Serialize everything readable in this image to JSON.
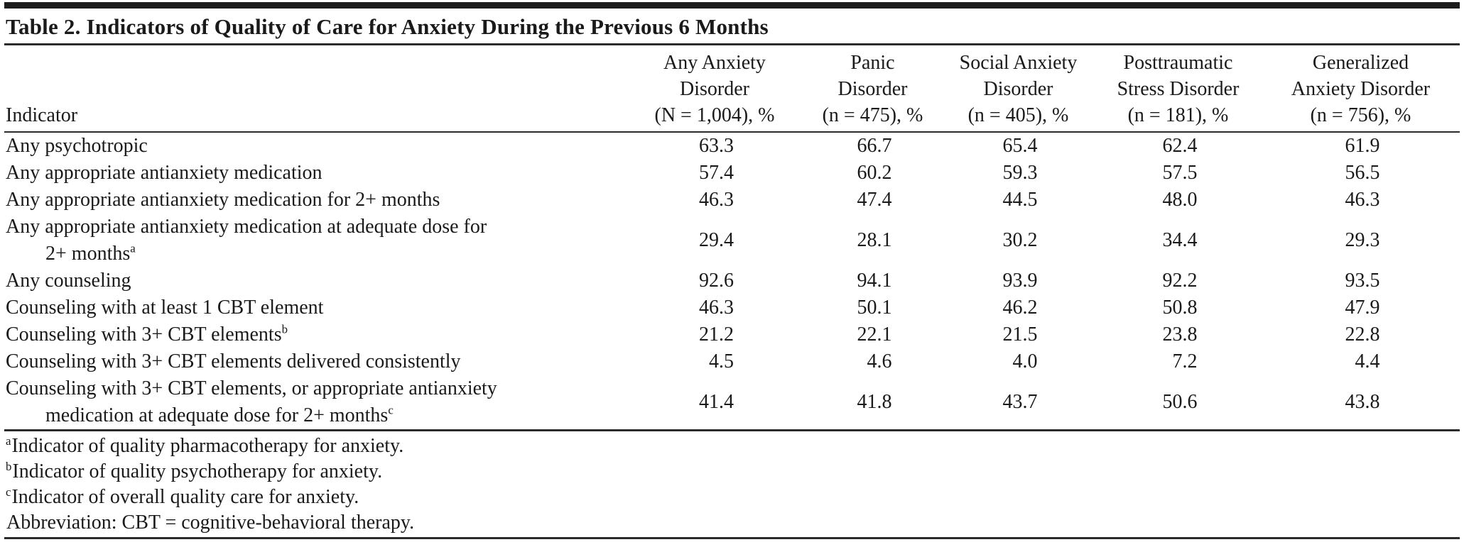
{
  "page": {
    "title": "Table 2. Indicators of Quality of Care for Anxiety During the Previous 6 Months"
  },
  "table": {
    "indicator_header": "Indicator",
    "columns": [
      {
        "line1": "Any Anxiety",
        "line2": "Disorder",
        "line3": "(N = 1,004), %"
      },
      {
        "line1": "Panic",
        "line2": "Disorder",
        "line3": "(n = 475), %"
      },
      {
        "line1": "Social Anxiety",
        "line2": "Disorder",
        "line3": "(n = 405), %"
      },
      {
        "line1": "Posttraumatic",
        "line2": "Stress Disorder",
        "line3": "(n = 181), %"
      },
      {
        "line1": "Generalized",
        "line2": "Anxiety Disorder",
        "line3": "(n = 756), %"
      }
    ],
    "rows": [
      {
        "text": "Any psychotropic",
        "values": [
          "63.3",
          "66.7",
          "65.4",
          "62.4",
          "61.9"
        ]
      },
      {
        "text": "Any appropriate antianxiety medication",
        "values": [
          "57.4",
          "60.2",
          "59.3",
          "57.5",
          "56.5"
        ]
      },
      {
        "text": "Any appropriate antianxiety medication for 2+ months",
        "values": [
          "46.3",
          "47.4",
          "44.5",
          "48.0",
          "46.3"
        ]
      },
      {
        "text": "Any appropriate antianxiety medication at adequate dose for",
        "text2": "2+ months",
        "sup": "a",
        "values": [
          "29.4",
          "28.1",
          "30.2",
          "34.4",
          "29.3"
        ]
      },
      {
        "text": "Any counseling",
        "values": [
          "92.6",
          "94.1",
          "93.9",
          "92.2",
          "93.5"
        ]
      },
      {
        "text": "Counseling with at least 1 CBT element",
        "values": [
          "46.3",
          "50.1",
          "46.2",
          "50.8",
          "47.9"
        ]
      },
      {
        "text": "Counseling with 3+ CBT elements",
        "sup": "b",
        "values": [
          "21.2",
          "22.1",
          "21.5",
          "23.8",
          "22.8"
        ]
      },
      {
        "text": "Counseling with 3+ CBT elements delivered consistently",
        "values": [
          "4.5",
          "4.6",
          "4.0",
          "7.2",
          "4.4"
        ]
      },
      {
        "text": "Counseling with 3+ CBT elements, or appropriate antianxiety",
        "text2": "medication at adequate dose for 2+ months",
        "sup": "c",
        "values": [
          "41.4",
          "41.8",
          "43.7",
          "50.6",
          "43.8"
        ]
      }
    ],
    "footnotes": [
      {
        "marker": "a",
        "text": "Indicator of quality pharmacotherapy for anxiety."
      },
      {
        "marker": "b",
        "text": "Indicator of quality psychotherapy for anxiety."
      },
      {
        "marker": "c",
        "text": "Indicator of overall quality care for anxiety."
      },
      {
        "marker": "",
        "text": "Abbreviation: CBT = cognitive-behavioral therapy."
      }
    ]
  },
  "colors": {
    "text": "#1a1a1a",
    "rule": "#2b2b2b",
    "top_bar": "#1c1c1c",
    "background": "#ffffff"
  }
}
